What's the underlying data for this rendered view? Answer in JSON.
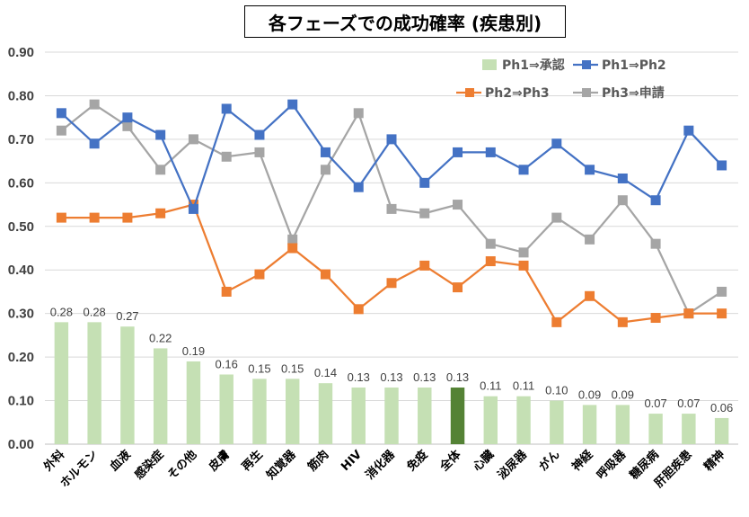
{
  "chart_data": {
    "type": "bar+line",
    "title": "各フェーズでの成功確率 (疾患別)",
    "ylim": [
      0,
      0.9
    ],
    "yticks": [
      "0.00",
      "0.10",
      "0.20",
      "0.30",
      "0.40",
      "0.50",
      "0.60",
      "0.70",
      "0.80",
      "0.90"
    ],
    "grid": true,
    "legend_position": "top-right",
    "categories": [
      "外科",
      "ホルモン",
      "血液",
      "感染症",
      "その他",
      "皮膚",
      "再生",
      "知覚器",
      "筋肉",
      "HIV",
      "消化器",
      "免疫",
      "全体",
      "心臓",
      "泌尿器",
      "がん",
      "神経",
      "呼吸器",
      "糖尿病",
      "肝胆疾患",
      "精神"
    ],
    "highlight_category": "全体",
    "colors": {
      "bar": "#c5e0b4",
      "bar_highlight": "#548235",
      "highlight_text": "#ff0000",
      "ph1_ph2": "#4472c4",
      "ph2_ph3": "#ed7d31",
      "ph3_app": "#a5a5a5",
      "grid": "#d9d9d9"
    },
    "series": [
      {
        "name": "Ph1⇒承認",
        "type": "bar",
        "values": [
          0.28,
          0.28,
          0.27,
          0.22,
          0.19,
          0.16,
          0.15,
          0.15,
          0.14,
          0.13,
          0.13,
          0.13,
          0.13,
          0.11,
          0.11,
          0.1,
          0.09,
          0.09,
          0.07,
          0.07,
          0.06
        ],
        "labels": [
          "0.28",
          "0.28",
          "0.27",
          "0.22",
          "0.19",
          "0.16",
          "0.15",
          "0.15",
          "0.14",
          "0.13",
          "0.13",
          "0.13",
          "0.13",
          "0.11",
          "0.11",
          "0.10",
          "0.09",
          "0.09",
          "0.07",
          "0.07",
          "0.06"
        ]
      },
      {
        "name": "Ph1⇒Ph2",
        "type": "line",
        "values": [
          0.76,
          0.69,
          0.75,
          0.71,
          0.54,
          0.77,
          0.71,
          0.78,
          0.67,
          0.59,
          0.7,
          0.6,
          0.67,
          0.67,
          0.63,
          0.69,
          0.63,
          0.61,
          0.56,
          0.72,
          0.64
        ]
      },
      {
        "name": "Ph2⇒Ph3",
        "type": "line",
        "values": [
          0.52,
          0.52,
          0.52,
          0.53,
          0.55,
          0.35,
          0.39,
          0.45,
          0.39,
          0.31,
          0.37,
          0.41,
          0.36,
          0.42,
          0.41,
          0.28,
          0.34,
          0.28,
          0.29,
          0.3,
          0.3
        ]
      },
      {
        "name": "Ph3⇒申請",
        "type": "line",
        "values": [
          0.72,
          0.78,
          0.73,
          0.63,
          0.7,
          0.66,
          0.67,
          0.47,
          0.63,
          0.76,
          0.54,
          0.53,
          0.55,
          0.46,
          0.44,
          0.52,
          0.47,
          0.56,
          0.46,
          0.3,
          0.35
        ]
      }
    ]
  }
}
